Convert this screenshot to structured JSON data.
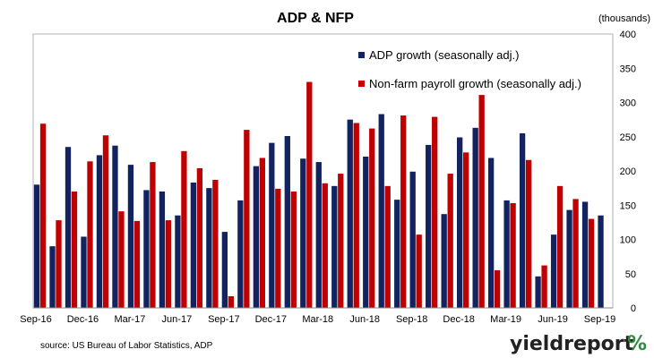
{
  "chart_data": {
    "type": "bar",
    "title": "ADP & NFP",
    "units_label": "(thousands)",
    "ylim": [
      0,
      400
    ],
    "yticks": [
      0,
      50,
      100,
      150,
      200,
      250,
      300,
      350,
      400
    ],
    "y_axis_side": "right",
    "grid": false,
    "legend_placement": "top-right",
    "x_tick_labels": [
      {
        "label": "Sep-16",
        "index": 0
      },
      {
        "label": "Dec-16",
        "index": 3
      },
      {
        "label": "Mar-17",
        "index": 6
      },
      {
        "label": "Jun-17",
        "index": 9
      },
      {
        "label": "Sep-17",
        "index": 12
      },
      {
        "label": "Dec-17",
        "index": 15
      },
      {
        "label": "Mar-18",
        "index": 18
      },
      {
        "label": "Jun-18",
        "index": 21
      },
      {
        "label": "Sep-18",
        "index": 24
      },
      {
        "label": "Dec-18",
        "index": 27
      },
      {
        "label": "Mar-19",
        "index": 30
      },
      {
        "label": "Jun-19",
        "index": 33
      },
      {
        "label": "Sep-19",
        "index": 36
      }
    ],
    "categories": [
      "Sep-16",
      "Oct-16",
      "Nov-16",
      "Dec-16",
      "Jan-17",
      "Feb-17",
      "Mar-17",
      "Apr-17",
      "May-17",
      "Jun-17",
      "Jul-17",
      "Aug-17",
      "Sep-17",
      "Oct-17",
      "Nov-17",
      "Dec-17",
      "Jan-18",
      "Feb-18",
      "Mar-18",
      "Apr-18",
      "May-18",
      "Jun-18",
      "Jul-18",
      "Aug-18",
      "Sep-18",
      "Oct-18",
      "Nov-18",
      "Dec-18",
      "Jan-19",
      "Feb-19",
      "Mar-19",
      "Apr-19",
      "May-19",
      "Jun-19",
      "Jul-19",
      "Aug-19",
      "Sep-19"
    ],
    "series": [
      {
        "name": "ADP growth (seasonally adj.)",
        "color": "#12235f",
        "values": [
          180,
          90,
          235,
          104,
          223,
          237,
          209,
          172,
          170,
          135,
          183,
          175,
          111,
          157,
          207,
          241,
          251,
          218,
          213,
          178,
          275,
          221,
          283,
          158,
          199,
          238,
          137,
          249,
          263,
          219,
          157,
          255,
          46,
          107,
          143,
          155,
          135
        ]
      },
      {
        "name": "Non-farm payroll growth (seasonally adj.)",
        "color": "#c00000",
        "values": [
          269,
          128,
          170,
          214,
          252,
          141,
          127,
          213,
          128,
          229,
          204,
          187,
          17,
          260,
          219,
          174,
          170,
          330,
          182,
          196,
          270,
          262,
          178,
          281,
          107,
          279,
          196,
          227,
          311,
          55,
          153,
          216,
          62,
          178,
          159,
          130,
          null
        ]
      }
    ]
  },
  "footer": {
    "source": "source: US Bureau of Labor Statistics, ADP"
  },
  "brand": {
    "name": "yieldreport",
    "mark": "%",
    "name_color": "#222222",
    "mark_colors": [
      "#2e8b3e",
      "#c00000"
    ]
  }
}
